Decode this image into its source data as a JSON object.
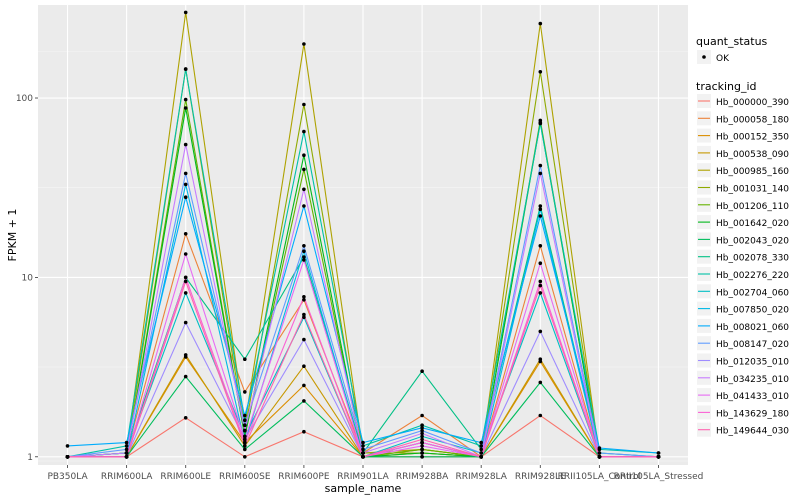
{
  "chart_data": {
    "type": "line",
    "title": "",
    "xlabel": "sample_name",
    "ylabel": "FPKM + 1",
    "y_scale": "log10",
    "ylim": [
      0.9,
      330
    ],
    "y_ticks": [
      {
        "value": 1,
        "label": "1"
      },
      {
        "value": 10,
        "label": "10"
      },
      {
        "value": 100,
        "label": "100"
      }
    ],
    "grid": true,
    "legend_position": "right",
    "categories": [
      "PB350LA",
      "RRIM600LA",
      "RRIM600LE",
      "RRIM600SE",
      "RRIM600PE",
      "RRIM901LA",
      "RRIM928BA",
      "RRIM928LA",
      "RRIM928LE",
      "RRII105LA_Control",
      "RRII105LA_Stressed"
    ],
    "legend_quant": {
      "title": "quant_status",
      "items": [
        "OK"
      ]
    },
    "legend_tracking": {
      "title": "tracking_id"
    },
    "series": [
      {
        "name": "Hb_000000_390",
        "color": "#F8766D",
        "values": [
          1.0,
          1.0,
          1.65,
          1.0,
          1.38,
          1.0,
          1.0,
          1.0,
          1.7,
          1.0,
          1.0
        ]
      },
      {
        "name": "Hb_000058_180",
        "color": "#EC8239",
        "values": [
          1.0,
          1.05,
          17.5,
          2.3,
          7.5,
          1.05,
          1.7,
          1.0,
          15.0,
          1.0,
          1.0
        ]
      },
      {
        "name": "Hb_000152_350",
        "color": "#DB8E00",
        "values": [
          1.0,
          1.0,
          3.6,
          1.2,
          2.5,
          1.0,
          1.1,
          1.0,
          3.4,
          1.0,
          1.0
        ]
      },
      {
        "name": "Hb_000538_090",
        "color": "#C79800",
        "values": [
          1.0,
          1.0,
          3.7,
          1.15,
          3.2,
          1.0,
          1.05,
          1.0,
          3.5,
          1.0,
          1.0
        ]
      },
      {
        "name": "Hb_000985_160",
        "color": "#AEA200",
        "values": [
          1.0,
          1.05,
          300,
          1.5,
          200,
          1.05,
          1.1,
          1.0,
          260,
          1.0,
          1.0
        ]
      },
      {
        "name": "Hb_001031_140",
        "color": "#8FAA00",
        "values": [
          1.0,
          1.05,
          145,
          1.4,
          92,
          1.05,
          1.05,
          1.0,
          140,
          1.0,
          1.0
        ]
      },
      {
        "name": "Hb_001206_110",
        "color": "#64B200",
        "values": [
          1.0,
          1.0,
          98,
          1.3,
          40,
          1.0,
          1.1,
          1.0,
          75,
          1.0,
          1.0
        ]
      },
      {
        "name": "Hb_001642_020",
        "color": "#00B81B",
        "values": [
          1.0,
          1.0,
          88,
          1.3,
          48,
          1.0,
          1.05,
          1.0,
          73,
          1.0,
          1.0
        ]
      },
      {
        "name": "Hb_002043_020",
        "color": "#00BD5C",
        "values": [
          1.0,
          1.0,
          2.8,
          1.1,
          2.05,
          1.0,
          1.0,
          1.0,
          2.6,
          1.0,
          1.0
        ]
      },
      {
        "name": "Hb_002078_330",
        "color": "#00C085",
        "values": [
          1.0,
          1.05,
          10.0,
          3.5,
          13.0,
          1.05,
          3.0,
          1.1,
          25.0,
          1.05,
          1.0
        ]
      },
      {
        "name": "Hb_002276_220",
        "color": "#00C1A7",
        "values": [
          1.0,
          1.15,
          145,
          1.6,
          65,
          1.15,
          1.5,
          1.15,
          72,
          1.1,
          1.05
        ]
      },
      {
        "name": "Hb_002704_060",
        "color": "#00BFC4",
        "values": [
          1.0,
          1.05,
          8.2,
          1.3,
          6.0,
          1.0,
          1.3,
          1.05,
          8.2,
          1.0,
          1.0
        ]
      },
      {
        "name": "Hb_007850_020",
        "color": "#00B8E5",
        "values": [
          1.0,
          1.0,
          33,
          1.2,
          14,
          1.0,
          1.2,
          1.0,
          24,
          1.0,
          1.0
        ]
      },
      {
        "name": "Hb_008021_060",
        "color": "#00ACFC",
        "values": [
          1.15,
          1.2,
          28,
          1.7,
          25,
          1.2,
          1.45,
          1.2,
          22,
          1.12,
          1.05
        ]
      },
      {
        "name": "Hb_008147_020",
        "color": "#619CFF",
        "values": [
          1.0,
          1.1,
          38,
          1.5,
          15,
          1.1,
          1.4,
          1.05,
          42,
          1.05,
          1.0
        ]
      },
      {
        "name": "Hb_012035_010",
        "color": "#9F8CFF",
        "values": [
          1.0,
          1.0,
          5.6,
          1.25,
          4.5,
          1.0,
          1.2,
          1.0,
          5.0,
          1.0,
          1.0
        ]
      },
      {
        "name": "Hb_034235_010",
        "color": "#C77CFF",
        "values": [
          1.0,
          1.05,
          55,
          1.4,
          31,
          1.05,
          1.35,
          1.0,
          38,
          1.0,
          1.0
        ]
      },
      {
        "name": "Hb_041433_010",
        "color": "#E76BF3",
        "values": [
          1.0,
          1.0,
          13.5,
          1.25,
          12.5,
          1.0,
          1.15,
          1.0,
          12.0,
          1.0,
          1.0
        ]
      },
      {
        "name": "Hb_143629_180",
        "color": "#FA62D4",
        "values": [
          1.0,
          1.0,
          10,
          1.2,
          7.8,
          1.0,
          1.2,
          1.0,
          9.5,
          1.0,
          1.0
        ]
      },
      {
        "name": "Hb_149644_030",
        "color": "#FF64B0",
        "values": [
          1.0,
          1.0,
          9.5,
          1.15,
          6.2,
          1.0,
          1.25,
          1.0,
          9.0,
          1.0,
          1.0
        ]
      }
    ]
  }
}
